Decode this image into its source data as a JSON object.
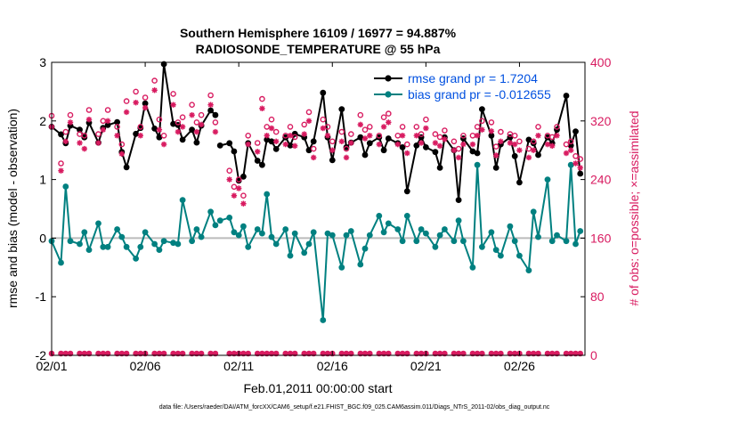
{
  "chart_data": {
    "type": "line",
    "title_line1": "Southern Hemisphere 16109 / 16977 = 94.887%",
    "title_line2": "RADIOSONDE_TEMPERATURE @ 55 hPa",
    "xlabel": "Feb.01,2011 00:00:00 start",
    "ylabel_left": "rmse and bias (model - observation)",
    "ylabel_right": "# of obs: o=possible; ×=assimilated",
    "footer": "data file: /Users/raeder/DAI/ATM_forcXX/CAM6_setup/f.e21.FHIST_BGC.f09_025.CAM6assim.011/Diags_NTrS_2011-02/obs_diag_output.nc",
    "xlim": [
      0,
      28.5
    ],
    "ylim_left": [
      -2,
      3
    ],
    "ylim_right": [
      0,
      400
    ],
    "x_ticks": [
      0,
      5,
      10,
      15,
      20,
      25
    ],
    "x_tick_labels": [
      "02/01",
      "02/06",
      "02/11",
      "02/16",
      "02/21",
      "02/26"
    ],
    "y_ticks_left": [
      -2,
      -1,
      0,
      1,
      2,
      3
    ],
    "y_tick_labels_left": [
      "-2",
      "-1",
      "0",
      "1",
      "2",
      "3"
    ],
    "y_ticks_right": [
      0,
      80,
      160,
      240,
      320,
      400
    ],
    "y_tick_labels_right": [
      "0",
      "80",
      "160",
      "240",
      "320",
      "400"
    ],
    "legend_position": "top-right",
    "colors": {
      "rmse": "#000000",
      "bias": "#008080",
      "obs": "#d81b60",
      "legend_text": "#0050e0",
      "zero_line": "#bbbbbb"
    },
    "series": [
      {
        "name": "rmse",
        "legend_label": "rmse grand pr = 1.7204",
        "segments": [
          {
            "x": [
              0.0,
              0.5,
              0.75,
              1.0,
              1.5,
              1.75,
              2.0,
              2.5,
              2.75,
              3.0,
              3.5,
              3.75,
              4.0,
              4.5,
              4.75,
              5.0,
              5.5,
              5.75,
              6.0,
              6.5,
              6.75,
              7.0,
              7.5,
              7.75,
              8.0,
              8.5,
              8.75,
              9.0
            ],
            "values": [
              1.9,
              1.77,
              1.62,
              1.92,
              1.85,
              1.72,
              1.97,
              1.63,
              1.88,
              1.93,
              1.98,
              1.47,
              1.21,
              1.78,
              1.88,
              2.3,
              1.87,
              1.72,
              2.97,
              1.95,
              1.93,
              1.68,
              1.85,
              1.63,
              1.92,
              2.18,
              2.1,
              null
            ]
          },
          {
            "x": [
              9.0,
              9.5,
              9.75,
              10.0,
              10.25,
              10.5,
              11.0,
              11.25,
              11.5,
              11.75,
              12.0,
              12.5,
              12.75,
              13.0,
              13.5,
              13.75,
              14.0,
              14.5,
              14.75,
              15.0,
              15.5,
              15.75,
              16.0,
              16.5,
              16.75,
              17.0,
              17.5,
              17.75,
              18.0,
              18.5,
              18.75,
              19.0,
              19.5,
              19.75,
              20.0,
              20.5,
              20.75,
              21.0,
              21.5,
              21.75,
              22.0,
              22.5,
              22.75,
              23.0,
              23.5,
              23.75,
              24.0,
              24.5,
              24.75,
              25.0,
              25.5,
              25.75,
              26.0,
              26.5,
              26.75,
              27.0,
              27.5,
              27.75,
              28.0,
              28.25
            ],
            "values": [
              1.58,
              1.62,
              1.48,
              0.98,
              1.05,
              1.62,
              1.32,
              1.25,
              1.68,
              1.65,
              1.52,
              1.72,
              1.58,
              1.78,
              1.72,
              1.5,
              1.65,
              2.48,
              1.72,
              1.33,
              2.2,
              1.55,
              1.63,
              1.72,
              1.42,
              1.62,
              1.72,
              1.5,
              1.7,
              1.62,
              1.55,
              0.8,
              1.58,
              1.72,
              1.55,
              1.47,
              1.2,
              1.72,
              1.5,
              0.65,
              1.7,
              1.48,
              1.45,
              2.2,
              1.75,
              1.2,
              1.6,
              1.72,
              1.4,
              0.95,
              1.68,
              1.62,
              1.42,
              1.72,
              1.62,
              1.85,
              2.43,
              1.58,
              1.82,
              1.1
            ]
          }
        ]
      },
      {
        "name": "bias",
        "legend_label": "bias grand pr = -0.012655",
        "segments": [
          {
            "x": [
              0.0,
              0.5,
              0.75,
              1.0,
              1.5,
              1.75,
              2.0,
              2.5,
              2.75,
              3.0,
              3.5,
              3.75,
              4.0,
              4.5,
              4.75,
              5.0,
              5.5,
              5.75,
              6.0,
              6.5,
              6.75,
              7.0,
              7.5,
              7.75,
              8.0,
              8.5,
              8.75,
              9.0
            ],
            "values": [
              -0.05,
              -0.42,
              0.88,
              -0.05,
              -0.1,
              0.1,
              -0.2,
              0.25,
              -0.15,
              -0.15,
              0.15,
              0.02,
              -0.15,
              -0.35,
              -0.15,
              0.1,
              -0.1,
              -0.2,
              -0.05,
              -0.08,
              -0.1,
              0.65,
              -0.05,
              0.15,
              0.02,
              0.45,
              0.22,
              null
            ]
          },
          {
            "x": [
              9.0,
              9.5,
              9.75,
              10.0,
              10.25,
              10.5,
              11.0,
              11.25,
              11.5,
              11.75,
              12.0,
              12.5,
              12.75,
              13.0,
              13.5,
              13.75,
              14.0,
              14.5,
              14.75,
              15.0,
              15.5,
              15.75,
              16.0,
              16.5,
              16.75,
              17.0,
              17.5,
              17.75,
              18.0,
              18.5,
              18.75,
              19.0,
              19.5,
              19.75,
              20.0,
              20.5,
              20.75,
              21.0,
              21.5,
              21.75,
              22.0,
              22.5,
              22.75,
              23.0,
              23.5,
              23.75,
              24.0,
              24.5,
              24.75,
              25.0,
              25.5,
              25.75,
              26.0,
              26.5,
              26.75,
              27.0,
              27.5,
              27.75,
              28.0,
              28.25
            ],
            "values": [
              0.3,
              0.35,
              0.1,
              0.05,
              0.2,
              -0.15,
              0.15,
              0.08,
              0.75,
              0.02,
              -0.1,
              0.15,
              -0.3,
              0.08,
              -0.25,
              -0.1,
              0.1,
              -1.4,
              0.08,
              0.05,
              -0.5,
              0.05,
              0.12,
              -0.45,
              -0.18,
              0.05,
              0.38,
              0.1,
              0.25,
              0.15,
              -0.05,
              0.38,
              -0.05,
              0.15,
              0.08,
              -0.15,
              0.05,
              0.15,
              -0.05,
              0.3,
              -0.05,
              -0.5,
              1.25,
              -0.15,
              0.1,
              -0.2,
              -0.3,
              0.2,
              -0.05,
              -0.3,
              -0.55,
              0.45,
              0.02,
              1.0,
              -0.05,
              0.05,
              -0.05,
              1.25,
              -0.1,
              0.12
            ]
          }
        ]
      }
    ],
    "obs_possible": {
      "x": [
        0.0,
        0.5,
        0.75,
        1.0,
        1.5,
        1.75,
        2.0,
        2.5,
        2.75,
        3.0,
        3.5,
        3.75,
        4.0,
        4.5,
        4.75,
        5.0,
        5.5,
        5.75,
        6.0,
        6.5,
        6.75,
        7.0,
        7.5,
        7.75,
        8.0,
        8.5,
        8.75,
        9.5,
        9.75,
        10.0,
        10.25,
        10.5,
        11.0,
        11.25,
        11.5,
        11.75,
        12.0,
        12.5,
        12.75,
        13.0,
        13.5,
        13.75,
        14.0,
        14.5,
        14.75,
        15.0,
        15.5,
        15.75,
        16.0,
        16.5,
        16.75,
        17.0,
        17.5,
        17.75,
        18.0,
        18.5,
        18.75,
        19.0,
        19.5,
        19.75,
        20.0,
        20.5,
        20.75,
        21.0,
        21.5,
        21.75,
        22.0,
        22.5,
        22.75,
        23.0,
        23.5,
        23.75,
        24.0,
        24.5,
        24.75,
        25.0,
        25.5,
        25.75,
        26.0,
        26.5,
        26.75,
        27.0,
        27.5,
        27.75,
        28.0,
        28.25
      ],
      "values": [
        327,
        262,
        305,
        328,
        302,
        300,
        335,
        302,
        320,
        335,
        312,
        288,
        347,
        360,
        312,
        352,
        375,
        322,
        300,
        357,
        318,
        325,
        342,
        318,
        328,
        355,
        318,
        252,
        230,
        240,
        218,
        300,
        290,
        350,
        312,
        322,
        305,
        300,
        312,
        298,
        315,
        332,
        282,
        322,
        312,
        292,
        305,
        282,
        302,
        328,
        308,
        312,
        300,
        325,
        330,
        300,
        312,
        288,
        312,
        302,
        322,
        302,
        298,
        307,
        292,
        282,
        300,
        300,
        312,
        320,
        318,
        285,
        305,
        302,
        300,
        292,
        282,
        292,
        312,
        300,
        298,
        312,
        288,
        292,
        272,
        268
      ]
    },
    "obs_assimilated": {
      "x": [
        0.0,
        0.5,
        0.75,
        1.0,
        1.5,
        1.75,
        2.0,
        2.5,
        2.75,
        3.0,
        3.5,
        3.75,
        4.0,
        4.5,
        4.75,
        5.0,
        5.5,
        5.75,
        6.0,
        6.5,
        6.75,
        7.0,
        7.5,
        7.75,
        8.0,
        8.5,
        8.75,
        9.5,
        9.75,
        10.0,
        10.25,
        10.5,
        11.0,
        11.25,
        11.5,
        11.75,
        12.0,
        12.5,
        12.75,
        13.0,
        13.5,
        13.75,
        14.0,
        14.5,
        14.75,
        15.0,
        15.5,
        15.75,
        16.0,
        16.5,
        16.75,
        17.0,
        17.5,
        17.75,
        18.0,
        18.5,
        18.75,
        19.0,
        19.5,
        19.75,
        20.0,
        20.5,
        20.75,
        21.0,
        21.5,
        21.75,
        22.0,
        22.5,
        22.75,
        23.0,
        23.5,
        23.75,
        24.0,
        24.5,
        24.75,
        25.0,
        25.5,
        25.75,
        26.0,
        26.5,
        26.75,
        27.0,
        27.5,
        27.75,
        28.0,
        28.25
      ],
      "values": [
        312,
        252,
        292,
        318,
        290,
        282,
        322,
        290,
        308,
        320,
        300,
        275,
        332,
        345,
        300,
        338,
        362,
        308,
        288,
        342,
        305,
        312,
        328,
        305,
        315,
        342,
        305,
        240,
        218,
        228,
        207,
        288,
        278,
        337,
        300,
        310,
        292,
        288,
        300,
        286,
        302,
        320,
        270,
        310,
        300,
        280,
        292,
        270,
        290,
        315,
        296,
        300,
        288,
        312,
        318,
        288,
        300,
        276,
        300,
        290,
        310,
        290,
        286,
        295,
        280,
        270,
        288,
        288,
        300,
        308,
        306,
        273,
        292,
        290,
        288,
        280,
        270,
        280,
        300,
        288,
        286,
        300,
        276,
        280,
        262,
        256
      ]
    }
  }
}
